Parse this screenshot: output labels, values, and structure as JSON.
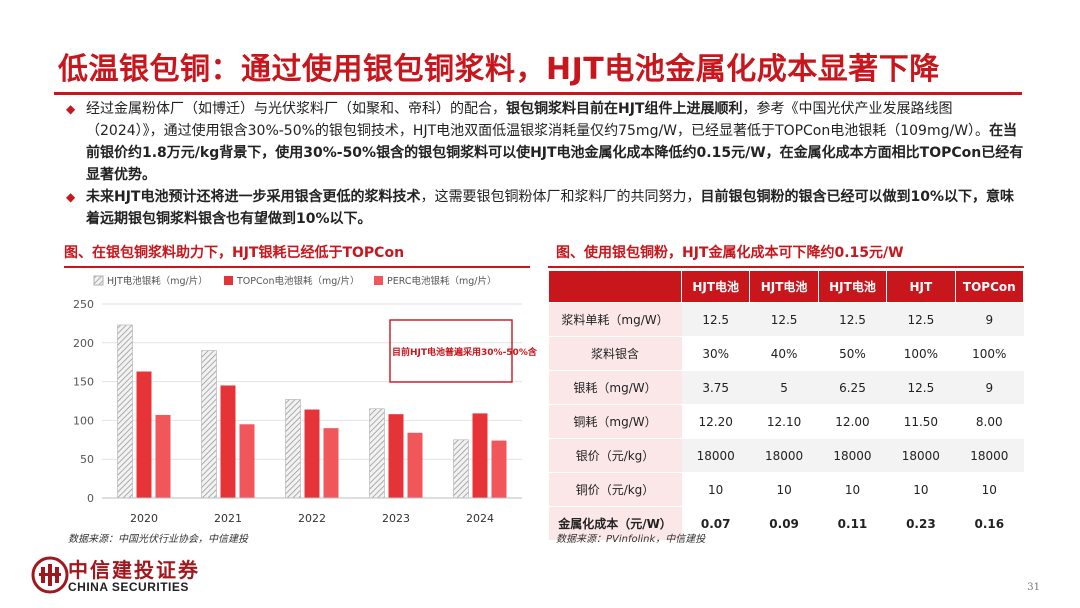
{
  "title": "低温银包铜：通过使用银包铜浆料，HJT电池金属化成本显著下降",
  "bullets": [
    {
      "parts": [
        {
          "t": "经过金属粉体厂（如博迁）与光伏浆料厂（如聚和、帝科）的配合，",
          "b": false
        },
        {
          "t": "银包铜浆料目前在HJT组件上进展顺利",
          "b": true
        },
        {
          "t": "，参考《中国光伏产业发展路线图（2024）》，通过使用银含30%-50%的银包铜技术，HJT电池双面低温银浆消耗量仅约75mg/W，已经显著低于TOPCon电池银耗（109mg/W）。",
          "b": false
        },
        {
          "t": "在当前银价约1.8万元/kg背景下，使用30%-50%银含的银包铜浆料可以使HJT电池金属化成本降低约0.15元/W，在金属化成本方面相比TOPCon已经有显著优势。",
          "b": true
        }
      ]
    },
    {
      "parts": [
        {
          "t": "未来HJT电池预计还将进一步采用银含更低的浆料技术",
          "b": true
        },
        {
          "t": "，这需要银包铜粉体厂和浆料厂的共同努力，",
          "b": false
        },
        {
          "t": "目前银包铜粉的银含已经可以做到10%以下，意味着远期银包铜浆料银含也有望做到10%以下。",
          "b": true
        }
      ]
    }
  ],
  "left_caption": "图、在银包铜浆料助力下，HJT银耗已经低于TOPCon",
  "right_caption": "图、使用银包铜粉，HJT金属化成本可下降约0.15元/W",
  "left_source": "数据来源：中国光伏行业协会，中信建投",
  "right_source": "数据来源：PVinfolink，中信建投",
  "chart_data": {
    "type": "bar",
    "categories": [
      "2020",
      "2021",
      "2022",
      "2023",
      "2024"
    ],
    "series": [
      {
        "name": "HJT电池银耗（mg/片）",
        "values": [
          223,
          190,
          127,
          115,
          75
        ],
        "color": "#d9d9d9",
        "pattern": "hatch"
      },
      {
        "name": "TOPCon电池银耗（mg/片）",
        "values": [
          163,
          145,
          114,
          108,
          109
        ],
        "color": "#e63338"
      },
      {
        "name": "PERC电池银耗（mg/片）",
        "values": [
          107,
          95,
          90,
          84,
          74
        ],
        "color": "#f0565a"
      }
    ],
    "yticks": [
      "0",
      "50",
      "100",
      "150",
      "200",
      "250"
    ],
    "ylim": [
      0,
      250
    ],
    "annotation": "目前HJT电池普遍采用30%-50%含",
    "legend": "top"
  },
  "table": {
    "headers": [
      "",
      "HJT电池",
      "HJT电池",
      "HJT电池",
      "HJT",
      "TOPCon"
    ],
    "rows": [
      [
        "浆料单耗（mg/W）",
        "12.5",
        "12.5",
        "12.5",
        "12.5",
        "9"
      ],
      [
        "浆料银含",
        "30%",
        "40%",
        "50%",
        "100%",
        "100%"
      ],
      [
        "银耗（mg/W）",
        "3.75",
        "5",
        "6.25",
        "12.5",
        "9"
      ],
      [
        "铜耗（mg/W）",
        "12.20",
        "12.10",
        "12.00",
        "11.50",
        "8.00"
      ],
      [
        "银价（元/kg）",
        "18000",
        "18000",
        "18000",
        "18000",
        "18000"
      ],
      [
        "铜价（元/kg）",
        "10",
        "10",
        "10",
        "10",
        "10"
      ]
    ],
    "total": [
      "金属化成本（元/W）",
      "0.07",
      "0.09",
      "0.11",
      "0.23",
      "0.16"
    ]
  },
  "logo": {
    "cn": "中信建投证券",
    "en": "CHINA SECURITIES"
  },
  "page_number": "31",
  "colors": {
    "brand_red": "#c8161d"
  }
}
